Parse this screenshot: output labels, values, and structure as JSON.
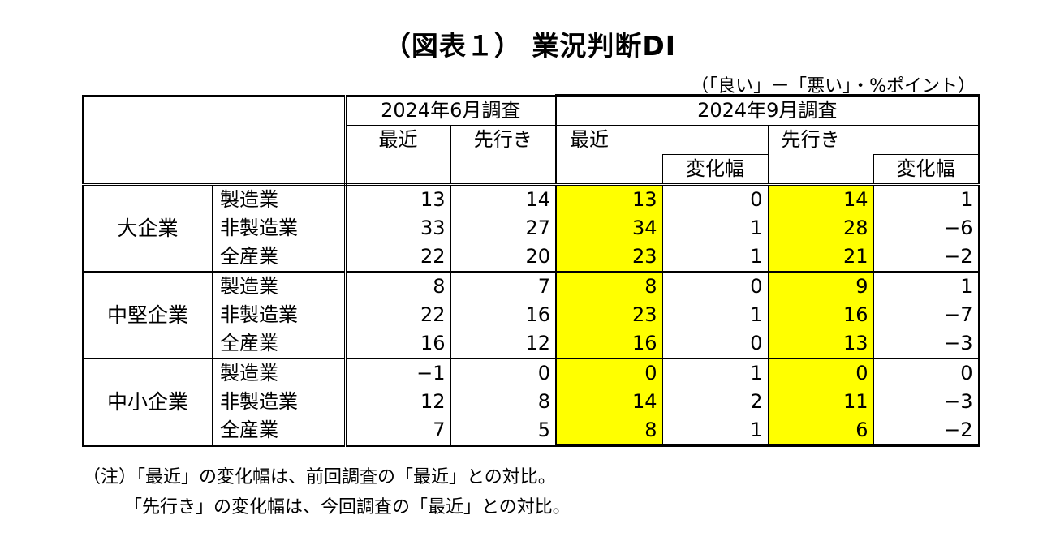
{
  "title": "（図表１） 業況判断DI",
  "unit_note": "（「良い」ー「悪い」・%ポイント）",
  "header": {
    "survey_june": "2024年6月調査",
    "survey_sept": "2024年9月調査",
    "recent": "最近",
    "outlook": "先行き",
    "change": "変化幅"
  },
  "groups": [
    {
      "name": "大企業",
      "rows": [
        {
          "industry": "製造業",
          "jun_recent": "13",
          "jun_outlook": "14",
          "sep_recent": "13",
          "sep_recent_chg": "0",
          "sep_outlook": "14",
          "sep_outlook_chg": "1"
        },
        {
          "industry": "非製造業",
          "jun_recent": "33",
          "jun_outlook": "27",
          "sep_recent": "34",
          "sep_recent_chg": "1",
          "sep_outlook": "28",
          "sep_outlook_chg": "−6"
        },
        {
          "industry": "全産業",
          "jun_recent": "22",
          "jun_outlook": "20",
          "sep_recent": "23",
          "sep_recent_chg": "1",
          "sep_outlook": "21",
          "sep_outlook_chg": "−2"
        }
      ]
    },
    {
      "name": "中堅企業",
      "rows": [
        {
          "industry": "製造業",
          "jun_recent": "8",
          "jun_outlook": "7",
          "sep_recent": "8",
          "sep_recent_chg": "0",
          "sep_outlook": "9",
          "sep_outlook_chg": "1"
        },
        {
          "industry": "非製造業",
          "jun_recent": "22",
          "jun_outlook": "16",
          "sep_recent": "23",
          "sep_recent_chg": "1",
          "sep_outlook": "16",
          "sep_outlook_chg": "−7"
        },
        {
          "industry": "全産業",
          "jun_recent": "16",
          "jun_outlook": "12",
          "sep_recent": "16",
          "sep_recent_chg": "0",
          "sep_outlook": "13",
          "sep_outlook_chg": "−3"
        }
      ]
    },
    {
      "name": "中小企業",
      "rows": [
        {
          "industry": "製造業",
          "jun_recent": "−1",
          "jun_outlook": "0",
          "sep_recent": "0",
          "sep_recent_chg": "1",
          "sep_outlook": "0",
          "sep_outlook_chg": "0"
        },
        {
          "industry": "非製造業",
          "jun_recent": "12",
          "jun_outlook": "8",
          "sep_recent": "14",
          "sep_recent_chg": "2",
          "sep_outlook": "11",
          "sep_outlook_chg": "−3"
        },
        {
          "industry": "全産業",
          "jun_recent": "7",
          "jun_outlook": "5",
          "sep_recent": "8",
          "sep_recent_chg": "1",
          "sep_outlook": "6",
          "sep_outlook_chg": "−2"
        }
      ]
    }
  ],
  "notes": [
    "（注）「最近」の変化幅は、前回調査の「最近」との対比。",
    "　　 「先行き」の変化幅は、今回調査の「最近」との対比。"
  ],
  "colors": {
    "highlight": "#ffff00",
    "border": "#000000"
  }
}
